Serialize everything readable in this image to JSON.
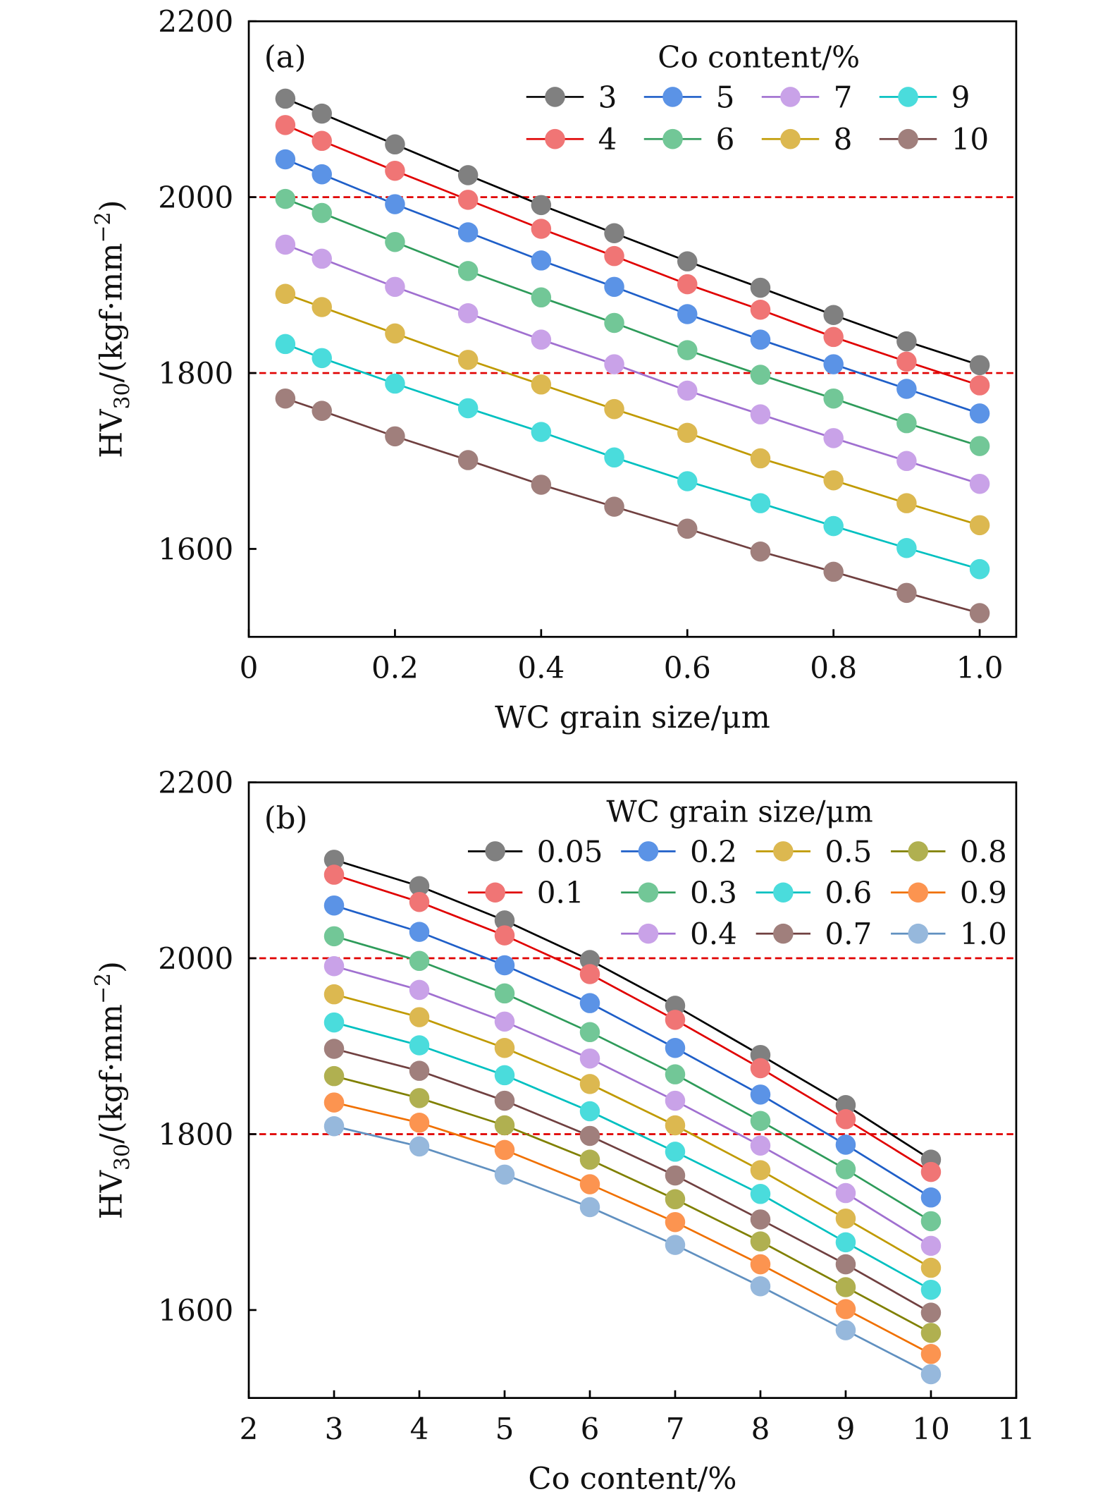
{
  "chart_data": [
    {
      "type": "line",
      "panel_label": "(a)",
      "xlabel": "WC grain size/μm",
      "ylabel": {
        "main": "HV",
        "sub": "30",
        "mid": "/(kgf·mm",
        "sup": "−2",
        "end": ")"
      },
      "xlim": [
        0,
        1.05
      ],
      "ylim": [
        1500,
        2200
      ],
      "xticks": [
        0,
        0.2,
        0.4,
        0.6,
        0.8,
        1.0
      ],
      "xtick_labels": [
        "0",
        "0.2",
        "0.4",
        "0.6",
        "0.8",
        "1.0"
      ],
      "yticks": [
        1600,
        1800,
        2000,
        2200
      ],
      "ytick_labels": [
        "1600",
        "1800",
        "2000",
        "2200"
      ],
      "reference_lines": [
        2000,
        1800
      ],
      "reference_color": "#e00000",
      "legend_title": "Co content/%",
      "legend_placement": "top-right",
      "x": [
        0.05,
        0.1,
        0.2,
        0.3,
        0.4,
        0.5,
        0.6,
        0.7,
        0.8,
        0.9,
        1.0
      ],
      "series": [
        {
          "name": "3",
          "line": "#000000",
          "marker": "#808080",
          "values": [
            2112,
            2095,
            2060,
            2025,
            1991,
            1959,
            1927,
            1897,
            1866,
            1836,
            1809
          ]
        },
        {
          "name": "4",
          "line": "#e00000",
          "marker": "#f07575",
          "values": [
            2082,
            2064,
            2030,
            1997,
            1964,
            1933,
            1901,
            1872,
            1841,
            1813,
            1786
          ]
        },
        {
          "name": "5",
          "line": "#1f5fc8",
          "marker": "#5b93e6",
          "values": [
            2043,
            2026,
            1992,
            1960,
            1928,
            1898,
            1867,
            1838,
            1810,
            1782,
            1754
          ]
        },
        {
          "name": "6",
          "line": "#2e9b5a",
          "marker": "#72c797",
          "values": [
            1998,
            1982,
            1949,
            1916,
            1886,
            1857,
            1826,
            1798,
            1771,
            1743,
            1717
          ]
        },
        {
          "name": "7",
          "line": "#a070d0",
          "marker": "#c9a2e8",
          "values": [
            1946,
            1930,
            1898,
            1868,
            1838,
            1810,
            1780,
            1753,
            1726,
            1700,
            1674
          ]
        },
        {
          "name": "8",
          "line": "#c09a00",
          "marker": "#dcb850",
          "values": [
            1890,
            1875,
            1845,
            1815,
            1787,
            1759,
            1732,
            1703,
            1678,
            1652,
            1627
          ]
        },
        {
          "name": "9",
          "line": "#00c0c0",
          "marker": "#4adcdc",
          "values": [
            1833,
            1817,
            1788,
            1760,
            1733,
            1704,
            1677,
            1652,
            1626,
            1601,
            1577
          ]
        },
        {
          "name": "10",
          "line": "#704040",
          "marker": "#a07f7c",
          "values": [
            1771,
            1757,
            1728,
            1701,
            1673,
            1648,
            1623,
            1597,
            1574,
            1550,
            1527
          ]
        }
      ]
    },
    {
      "type": "line",
      "panel_label": "(b)",
      "xlabel": "Co content/%",
      "ylabel": {
        "main": "HV",
        "sub": "30",
        "mid": "/(kgf·mm",
        "sup": "−2",
        "end": ")"
      },
      "xlim": [
        2,
        11
      ],
      "ylim": [
        1500,
        2200
      ],
      "xticks": [
        2,
        3,
        4,
        5,
        6,
        7,
        8,
        9,
        10,
        11
      ],
      "xtick_labels": [
        "2",
        "3",
        "4",
        "5",
        "6",
        "7",
        "8",
        "9",
        "10",
        "11"
      ],
      "yticks": [
        1600,
        1800,
        2000,
        2200
      ],
      "ytick_labels": [
        "1600",
        "1800",
        "2000",
        "2200"
      ],
      "reference_lines": [
        2000,
        1800
      ],
      "reference_color": "#e00000",
      "legend_title": "WC grain size/μm",
      "legend_placement": "top-right",
      "x": [
        3,
        4,
        5,
        6,
        7,
        8,
        9,
        10
      ],
      "series": [
        {
          "name": "0.05",
          "line": "#000000",
          "marker": "#808080",
          "values": [
            2112,
            2082,
            2043,
            1998,
            1946,
            1890,
            1833,
            1771
          ]
        },
        {
          "name": "0.1",
          "line": "#e00000",
          "marker": "#f07575",
          "values": [
            2095,
            2064,
            2026,
            1982,
            1930,
            1875,
            1817,
            1757
          ]
        },
        {
          "name": "0.2",
          "line": "#1f5fc8",
          "marker": "#5b93e6",
          "values": [
            2060,
            2030,
            1992,
            1949,
            1898,
            1845,
            1788,
            1728
          ]
        },
        {
          "name": "0.3",
          "line": "#2e9b5a",
          "marker": "#72c797",
          "values": [
            2025,
            1997,
            1960,
            1916,
            1868,
            1815,
            1760,
            1701
          ]
        },
        {
          "name": "0.4",
          "line": "#a070d0",
          "marker": "#c9a2e8",
          "values": [
            1991,
            1964,
            1928,
            1886,
            1838,
            1787,
            1733,
            1673
          ]
        },
        {
          "name": "0.5",
          "line": "#c09a00",
          "marker": "#dcb850",
          "values": [
            1959,
            1933,
            1898,
            1857,
            1810,
            1759,
            1704,
            1648
          ]
        },
        {
          "name": "0.6",
          "line": "#00c0c0",
          "marker": "#4adcdc",
          "values": [
            1927,
            1901,
            1867,
            1826,
            1780,
            1732,
            1677,
            1623
          ]
        },
        {
          "name": "0.7",
          "line": "#704040",
          "marker": "#a07f7c",
          "values": [
            1897,
            1872,
            1838,
            1798,
            1753,
            1703,
            1652,
            1597
          ]
        },
        {
          "name": "0.8",
          "line": "#808000",
          "marker": "#b0b050",
          "values": [
            1866,
            1841,
            1810,
            1771,
            1726,
            1678,
            1626,
            1574
          ]
        },
        {
          "name": "0.9",
          "line": "#f07000",
          "marker": "#fc9450",
          "values": [
            1836,
            1813,
            1782,
            1743,
            1700,
            1652,
            1601,
            1550
          ]
        },
        {
          "name": "1.0",
          "line": "#6090c0",
          "marker": "#96b8dc",
          "values": [
            1809,
            1786,
            1754,
            1717,
            1674,
            1627,
            1577,
            1527
          ]
        }
      ]
    }
  ]
}
